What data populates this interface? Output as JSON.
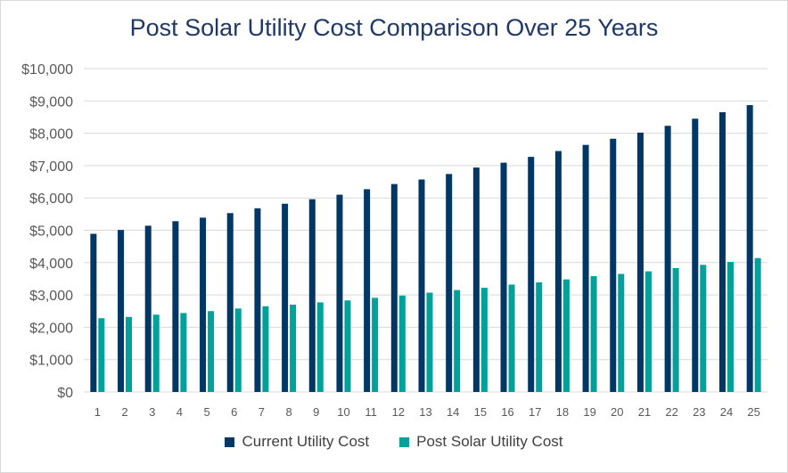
{
  "chart_data": {
    "type": "bar",
    "title": "Post Solar Utility Cost Comparison Over 25 Years",
    "xlabel": "",
    "ylabel": "",
    "ylim": [
      0,
      10000
    ],
    "yticks": [
      "$0",
      "$1,000",
      "$2,000",
      "$3,000",
      "$4,000",
      "$5,000",
      "$6,000",
      "$7,000",
      "$8,000",
      "$9,000",
      "$10,000"
    ],
    "grid": true,
    "legend": "bottom",
    "categories": [
      "1",
      "2",
      "3",
      "4",
      "5",
      "6",
      "7",
      "8",
      "9",
      "10",
      "11",
      "12",
      "13",
      "14",
      "15",
      "16",
      "17",
      "18",
      "19",
      "20",
      "21",
      "22",
      "23",
      "24",
      "25"
    ],
    "series": [
      {
        "name": "Current Utility Cost",
        "color": "#003764",
        "values": [
          4890,
          5010,
          5140,
          5280,
          5390,
          5530,
          5680,
          5820,
          5960,
          6100,
          6270,
          6430,
          6570,
          6740,
          6940,
          7090,
          7270,
          7450,
          7640,
          7830,
          8020,
          8230,
          8450,
          8650,
          8870
        ]
      },
      {
        "name": "Post Solar Utility Cost",
        "color": "#00a19a",
        "values": [
          2280,
          2320,
          2390,
          2440,
          2500,
          2580,
          2650,
          2700,
          2770,
          2830,
          2910,
          2980,
          3070,
          3150,
          3220,
          3320,
          3390,
          3480,
          3580,
          3650,
          3730,
          3830,
          3930,
          4020,
          4140
        ]
      }
    ]
  }
}
